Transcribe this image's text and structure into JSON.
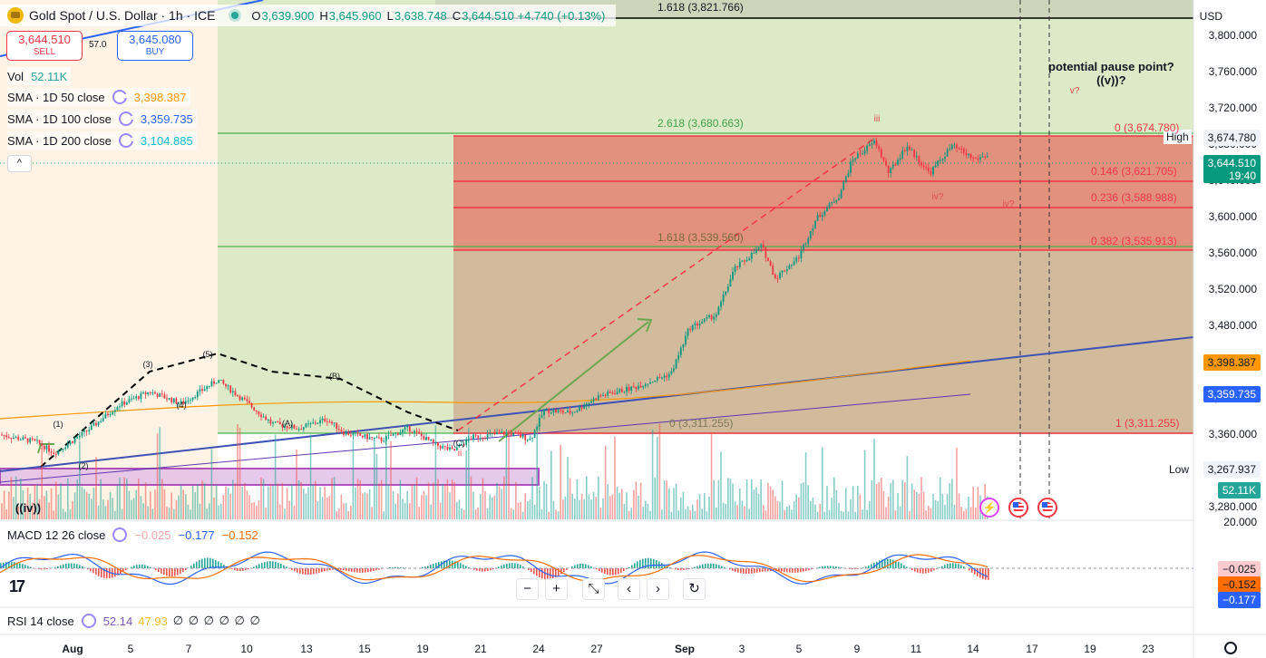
{
  "header": {
    "symbol_title": "Gold Spot / U.S. Dollar · 1h · ICE",
    "ohlc": [
      {
        "key": "O",
        "value": "3,639.900"
      },
      {
        "key": "H",
        "value": "3,645.960"
      },
      {
        "key": "L",
        "value": "3,638.748"
      },
      {
        "key": "C",
        "value": "3,644.510 +4.740 (+0.13%)"
      }
    ]
  },
  "trade": {
    "sell_price": "3,644.510",
    "sell_label": "SELL",
    "spread": "57.0",
    "buy_price": "3,645.080",
    "buy_label": "BUY"
  },
  "indicators": {
    "vol_name": "Vol",
    "vol_value": "52.11K",
    "sma50_name": "SMA · 1D 50 close",
    "sma50_value": "3,398.387",
    "sma100_name": "SMA · 1D 100 close",
    "sma100_value": "3,359.735",
    "sma200_name": "SMA · 1D 200 close",
    "sma200_value": "3,104.885",
    "collapse_glyph": "^"
  },
  "price_axis": {
    "currency": "USD",
    "ticks": [
      "3,800.000",
      "3,760.000",
      "3,720.000",
      "3,680.000",
      "3,640.000",
      "3,600.000",
      "3,560.000",
      "3,520.000",
      "3,480.000",
      "3,440.000",
      "3,400.000",
      "3,360.000",
      "3,320.000",
      "3,280.000"
    ],
    "high_label": "High",
    "high_value": "3,674.780",
    "last_price": "3,644.510",
    "countdown": "19:40",
    "sma50_tag": "3,398.387",
    "sma100_tag": "3,359.735",
    "low_label": "Low",
    "low_value": "3,267.937",
    "vol_tag": "52.11K",
    "macd_axis_top": "20.000",
    "macd_tags": [
      "−0.025",
      "−0.152",
      "−0.177"
    ],
    "colors": {
      "sma50": "#ff9800",
      "sma100": "#2962ff",
      "last": "#089981",
      "vol": "#26a69a"
    }
  },
  "time_axis": {
    "labels": [
      "Aug",
      "5",
      "7",
      "10",
      "13",
      "15",
      "19",
      "21",
      "24",
      "27",
      "Sep",
      "3",
      "5",
      "9",
      "11",
      "14",
      "17",
      "19",
      "23"
    ]
  },
  "fib": {
    "top_line": "1.618 (3,821.766)",
    "green_2618": "2.618 (3,680.663)",
    "green_1618": "1.618 (3,539.560)",
    "green_0": "0 (3,311.255)",
    "red_0": "0 (3,674.780)",
    "red_0146": "0.146 (3,621.705)",
    "red_0236": "0.236 (3,588.988)",
    "red_0382": "0.382 (3,535.913)",
    "red_1": "1 (3,311.255)"
  },
  "annotations": {
    "pause_line1": "potential pause point?",
    "pause_line2": "((v))?",
    "v_q": "v?",
    "iii": "iii",
    "iv_q1": "iv?",
    "iv_q2": "iv?",
    "ii": "ii",
    "big_iv": "((iv))",
    "w1": "(1)",
    "w2": "(2)",
    "w3": "(3)",
    "w4": "(4)",
    "w5": "(5)",
    "wA": "(A)",
    "wB": "(B)",
    "wC": "(C)"
  },
  "macd": {
    "name": "MACD 12 26 close",
    "v1": "−0.025",
    "v2": "−0.177",
    "v3": "−0.152"
  },
  "rsi": {
    "name": "RSI 14 close",
    "v1": "52.14",
    "v2": "47.93",
    "empties": "∅ ∅ ∅ ∅ ∅ ∅"
  },
  "nav": {
    "minus": "−",
    "plus": "+",
    "reset_zoom": "⤡",
    "back": "‹",
    "forward": "›",
    "refresh": "↻"
  },
  "chart_data": {
    "type": "candlestick",
    "ylim": [
      3250,
      3820
    ],
    "price_path": [
      [
        0,
        3338
      ],
      [
        40,
        3330
      ],
      [
        60,
        3318
      ],
      [
        100,
        3345
      ],
      [
        130,
        3370
      ],
      [
        165,
        3385
      ],
      [
        200,
        3372
      ],
      [
        240,
        3398
      ],
      [
        270,
        3375
      ],
      [
        300,
        3350
      ],
      [
        330,
        3345
      ],
      [
        360,
        3355
      ],
      [
        380,
        3340
      ],
      [
        420,
        3332
      ],
      [
        450,
        3345
      ],
      [
        480,
        3327
      ],
      [
        500,
        3320
      ],
      [
        520,
        3335
      ],
      [
        560,
        3340
      ],
      [
        585,
        3333
      ],
      [
        600,
        3365
      ],
      [
        630,
        3362
      ],
      [
        660,
        3380
      ],
      [
        700,
        3390
      ],
      [
        740,
        3405
      ],
      [
        760,
        3455
      ],
      [
        790,
        3470
      ],
      [
        810,
        3520
      ],
      [
        840,
        3545
      ],
      [
        855,
        3510
      ],
      [
        880,
        3532
      ],
      [
        900,
        3575
      ],
      [
        925,
        3600
      ],
      [
        940,
        3640
      ],
      [
        965,
        3660
      ],
      [
        980,
        3625
      ],
      [
        1000,
        3655
      ],
      [
        1025,
        3625
      ],
      [
        1050,
        3655
      ],
      [
        1075,
        3640
      ],
      [
        1090,
        3645
      ]
    ]
  }
}
